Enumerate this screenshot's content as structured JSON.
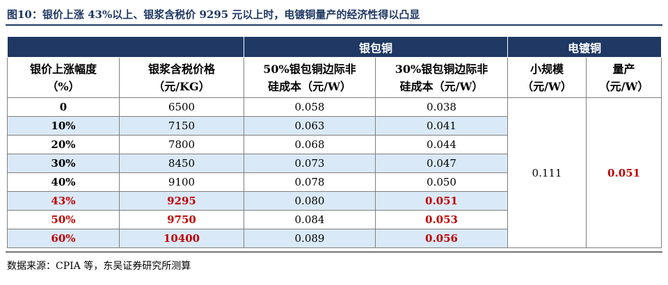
{
  "title": "图10：银价上涨 43%以上、银浆含税价 9295 元以上时，电镀铜量产的经济性得以凸显",
  "groups": {
    "silver_copper": "银包铜",
    "electroplated_copper": "电镀铜"
  },
  "columns": {
    "rise": [
      "银价上涨幅度",
      "（%）"
    ],
    "paste_price": [
      "银浆含税价格",
      "（元/KG）"
    ],
    "cost_50": [
      "50%银包铜边际非",
      "硅成本（元/W）"
    ],
    "cost_30": [
      "30%银包铜边际非",
      "硅成本（元/W）"
    ],
    "small": [
      "小规模",
      "（元/W）"
    ],
    "mass": [
      "量产",
      "（元/W）"
    ]
  },
  "rows": [
    {
      "rise": "0",
      "paste_price": "6500",
      "cost_50": "0.058",
      "cost_30": "0.038",
      "highlight": false
    },
    {
      "rise": "10%",
      "paste_price": "7150",
      "cost_50": "0.063",
      "cost_30": "0.041",
      "highlight": false
    },
    {
      "rise": "20%",
      "paste_price": "7800",
      "cost_50": "0.068",
      "cost_30": "0.044",
      "highlight": false
    },
    {
      "rise": "30%",
      "paste_price": "8450",
      "cost_50": "0.073",
      "cost_30": "0.047",
      "highlight": false
    },
    {
      "rise": "40%",
      "paste_price": "9100",
      "cost_50": "0.078",
      "cost_30": "0.050",
      "highlight": false
    },
    {
      "rise": "43%",
      "paste_price": "9295",
      "cost_50": "0.080",
      "cost_30": "0.051",
      "highlight": true
    },
    {
      "rise": "50%",
      "paste_price": "9750",
      "cost_50": "0.084",
      "cost_30": "0.053",
      "highlight": true
    },
    {
      "rise": "60%",
      "paste_price": "10400",
      "cost_50": "0.089",
      "cost_30": "0.056",
      "highlight": true
    }
  ],
  "electroplated": {
    "small": "0.111",
    "mass": "0.051"
  },
  "source": "数据来源：CPIA 等，东吴证券研究所测算",
  "colors": {
    "header_bg": "#1f3864",
    "stripe_bg": "#dae9f7",
    "highlight_text": "#c00000"
  }
}
